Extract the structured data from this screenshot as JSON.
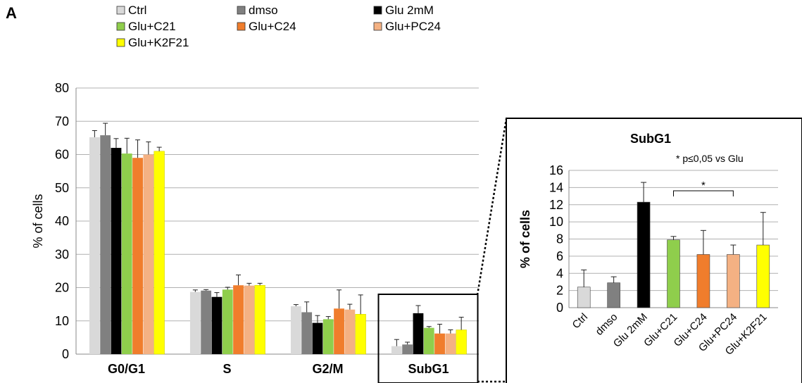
{
  "panel_label": "A",
  "chart_data": [
    {
      "type": "bar",
      "title": "",
      "xlabel": "",
      "ylabel": "% of cells",
      "ylim": [
        0,
        80
      ],
      "yticks": [
        0,
        10,
        20,
        30,
        40,
        50,
        60,
        70,
        80
      ],
      "grid": true,
      "legend": "top",
      "categories": [
        "G0/G1",
        "S",
        "G2/M",
        "SubG1"
      ],
      "series": [
        {
          "name": "Ctrl",
          "color": "#d9d9d9",
          "values": [
            65.2,
            18.7,
            14.4,
            2.4
          ],
          "errors": [
            2.0,
            0.6,
            0.5,
            2.0
          ]
        },
        {
          "name": "dmso",
          "color": "#808080",
          "values": [
            65.8,
            19.1,
            12.6,
            2.9
          ],
          "errors": [
            3.6,
            0.3,
            3.1,
            0.7
          ]
        },
        {
          "name": "Glu 2mM",
          "color": "#000000",
          "values": [
            62.0,
            17.2,
            9.4,
            12.3
          ],
          "errors": [
            2.8,
            1.3,
            2.2,
            2.3
          ]
        },
        {
          "name": "Glu+C21",
          "color": "#8fce4c",
          "values": [
            60.3,
            19.4,
            10.5,
            7.9
          ],
          "errors": [
            4.6,
            0.7,
            0.8,
            0.4
          ]
        },
        {
          "name": "Glu+C24",
          "color": "#f07d2c",
          "values": [
            59.0,
            20.7,
            13.7,
            6.2
          ],
          "errors": [
            5.4,
            3.1,
            5.6,
            2.8
          ]
        },
        {
          "name": "Glu+PC24",
          "color": "#f4b183",
          "values": [
            60.0,
            20.6,
            13.4,
            6.2
          ],
          "errors": [
            3.8,
            0.7,
            1.6,
            1.1
          ]
        },
        {
          "name": "Glu+K2F21",
          "color": "#ffff00",
          "values": [
            61.0,
            20.7,
            12.0,
            7.3
          ],
          "errors": [
            1.2,
            0.6,
            5.8,
            3.8
          ]
        }
      ]
    },
    {
      "type": "bar",
      "title": "SubG1",
      "xlabel": "",
      "ylabel": "% of cells",
      "ylim": [
        0,
        16
      ],
      "yticks": [
        0,
        2,
        4,
        6,
        8,
        10,
        12,
        14,
        16
      ],
      "grid": true,
      "annotation": "* p≤0,05 vs Glu",
      "significance_marker": "*",
      "categories": [
        "Ctrl",
        "dmso",
        "Glu 2mM",
        "Glu+C21",
        "Glu+C24",
        "Glu+PC24",
        "Glu+K2F21"
      ],
      "colors": [
        "#d9d9d9",
        "#808080",
        "#000000",
        "#8fce4c",
        "#f07d2c",
        "#f4b183",
        "#ffff00"
      ],
      "values": [
        2.4,
        2.9,
        12.3,
        7.9,
        6.2,
        6.2,
        7.3
      ],
      "errors": [
        2.0,
        0.7,
        2.3,
        0.4,
        2.8,
        1.1,
        3.8
      ]
    }
  ]
}
